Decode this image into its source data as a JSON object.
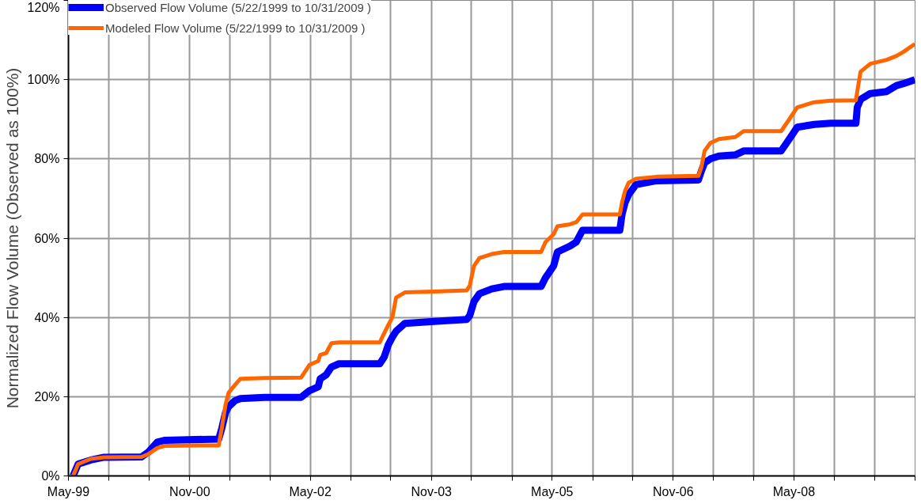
{
  "chart_data": {
    "type": "line",
    "ylabel": "Normalized Flow Volume (Observed as 100%)",
    "x": [
      "1999-05-22",
      "1999-06-14",
      "1999-08-10",
      "1999-10-09",
      "2000-03-28",
      "2000-04-27",
      "2000-06-06",
      "2000-07-12",
      "2001-03-12",
      "2001-03-26",
      "2001-04-12",
      "2001-04-26",
      "2001-05-25",
      "2001-06-18",
      "2001-10-06",
      "2002-03-20",
      "2002-04-27",
      "2002-06-06",
      "2002-06-15",
      "2002-07-12",
      "2002-08-05",
      "2002-09-08",
      "2003-03-12",
      "2003-04-01",
      "2003-04-19",
      "2003-05-08",
      "2003-05-25",
      "2003-07-04",
      "2003-11-12",
      "2004-04-09",
      "2004-04-23",
      "2004-05-12",
      "2004-06-06",
      "2004-08-01",
      "2004-09-25",
      "2005-03-12",
      "2005-04-01",
      "2005-05-08",
      "2005-05-25",
      "2005-07-21",
      "2005-08-18",
      "2005-09-16",
      "2006-03-04",
      "2006-03-14",
      "2006-03-28",
      "2006-04-13",
      "2006-05-16",
      "2006-08-18",
      "2007-02-23",
      "2007-03-09",
      "2007-03-23",
      "2007-04-18",
      "2007-05-27",
      "2007-08-09",
      "2007-09-16",
      "2008-03-04",
      "2008-04-10",
      "2008-05-16",
      "2008-08-01",
      "2008-10-15",
      "2009-02-06",
      "2009-02-12",
      "2009-02-27",
      "2009-04-12",
      "2009-06-25",
      "2009-08-09",
      "2009-09-09",
      "2009-10-31"
    ],
    "series": [
      {
        "name": "Observed Flow Volume (5/22/1999 to 10/31/2009 )",
        "color": "#0000ff",
        "values": [
          0,
          3,
          4,
          4.7,
          4.8,
          6,
          8.5,
          9,
          9.3,
          12,
          16,
          17.5,
          19,
          19.5,
          19.8,
          19.8,
          21.5,
          22.5,
          24.5,
          25.5,
          27.5,
          28.3,
          28.3,
          30,
          33,
          35,
          36.5,
          38.5,
          39,
          39.5,
          40.5,
          44,
          46,
          47.2,
          47.8,
          47.8,
          50,
          53,
          56.5,
          58,
          59,
          62,
          62,
          66,
          69,
          71,
          73.5,
          74.5,
          74.7,
          77,
          79,
          80,
          80.7,
          81,
          82,
          82,
          85,
          88,
          88.7,
          89,
          89,
          93,
          95,
          96.5,
          97,
          98.5,
          99,
          100
        ]
      },
      {
        "name": "Modeled Flow Volume (5/22/1999 to 10/31/2009 )",
        "color": "#ff6600",
        "values": [
          0,
          3,
          4.3,
          4.7,
          4.8,
          5.5,
          7,
          7.6,
          7.7,
          12,
          18,
          21,
          23,
          24.5,
          24.7,
          24.8,
          28,
          29,
          30.5,
          31,
          33.5,
          33.7,
          33.7,
          36,
          38,
          40,
          45,
          46.3,
          46.5,
          46.8,
          48,
          53,
          55,
          56,
          56.5,
          56.5,
          59,
          61,
          63,
          63.5,
          64,
          66,
          66,
          69,
          72,
          74,
          75,
          75.5,
          75.7,
          78,
          82,
          84,
          85,
          85.5,
          87,
          87,
          90,
          93,
          94.3,
          94.7,
          94.8,
          97,
          102,
          104,
          105,
          106,
          107,
          109
        ]
      }
    ],
    "xlim": [
      "1999-05-01",
      "2009-11-01"
    ],
    "xticks": [
      {
        "value": "1999-05",
        "label": "May-99"
      },
      {
        "value": "1999-11",
        "label": null
      },
      {
        "value": "2000-05",
        "label": null
      },
      {
        "value": "2000-11",
        "label": "Nov-00"
      },
      {
        "value": "2001-05",
        "label": null
      },
      {
        "value": "2001-11",
        "label": null
      },
      {
        "value": "2002-05",
        "label": "May-02"
      },
      {
        "value": "2002-11",
        "label": null
      },
      {
        "value": "2003-05",
        "label": null
      },
      {
        "value": "2003-11",
        "label": "Nov-03"
      },
      {
        "value": "2004-05",
        "label": null
      },
      {
        "value": "2004-11",
        "label": null
      },
      {
        "value": "2005-05",
        "label": "May-05"
      },
      {
        "value": "2005-11",
        "label": null
      },
      {
        "value": "2006-05",
        "label": null
      },
      {
        "value": "2006-11",
        "label": "Nov-06"
      },
      {
        "value": "2007-05",
        "label": null
      },
      {
        "value": "2007-11",
        "label": null
      },
      {
        "value": "2008-05",
        "label": "May-08"
      },
      {
        "value": "2008-11",
        "label": null
      },
      {
        "value": "2009-05",
        "label": null
      },
      {
        "value": "2009-11",
        "label": null
      }
    ],
    "ylim": [
      0,
      120
    ],
    "yticks": [
      {
        "value": 0,
        "label": "0%"
      },
      {
        "value": 20,
        "label": "20%"
      },
      {
        "value": 40,
        "label": "40%"
      },
      {
        "value": 60,
        "label": "60%"
      },
      {
        "value": 80,
        "label": "80%"
      },
      {
        "value": 100,
        "label": "100%"
      },
      {
        "value": 120,
        "label": "120%"
      }
    ],
    "grid": true,
    "legend": "top",
    "marker": "none",
    "line_style": "solid"
  }
}
